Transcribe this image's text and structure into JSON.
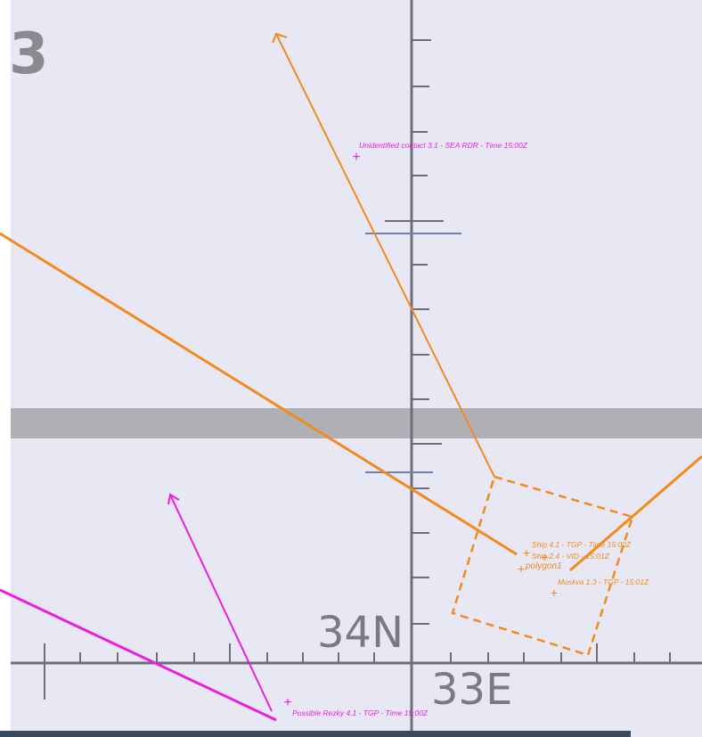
{
  "chart_title_digit": "3",
  "grid_labels": {
    "latitude": "34N",
    "longitude": "33E"
  },
  "colors": {
    "background": "#e7e8f4",
    "grid": "#6e6e78",
    "band": "#a5a6aa",
    "own_track": "#f28a1c",
    "unknown_track": "#e81ee4",
    "bottom_bar": "#3a4a5c"
  },
  "contacts": [
    {
      "id": "unidentified-3-1",
      "label": "Unidentified contact 3.1 - SEA RDR - Time 15:00Z",
      "color": "magenta"
    },
    {
      "id": "possible-rezky-4-1",
      "label": "Possible Rezky 4.1 - TGP - Time 15:00Z",
      "color": "magenta"
    },
    {
      "id": "ship-4-1",
      "label": "Ship 4.1 - TGP - Time 15:00Z",
      "color": "orange"
    },
    {
      "id": "ship-2-4",
      "label": "Ship 2.4 - VID - 15:01Z",
      "color": "orange"
    },
    {
      "id": "polygon1",
      "label": "polygon1",
      "color": "orange"
    },
    {
      "id": "moskva-1-3",
      "label": "Moskva 1.3 - TGP - 15:01Z",
      "color": "orange"
    }
  ]
}
